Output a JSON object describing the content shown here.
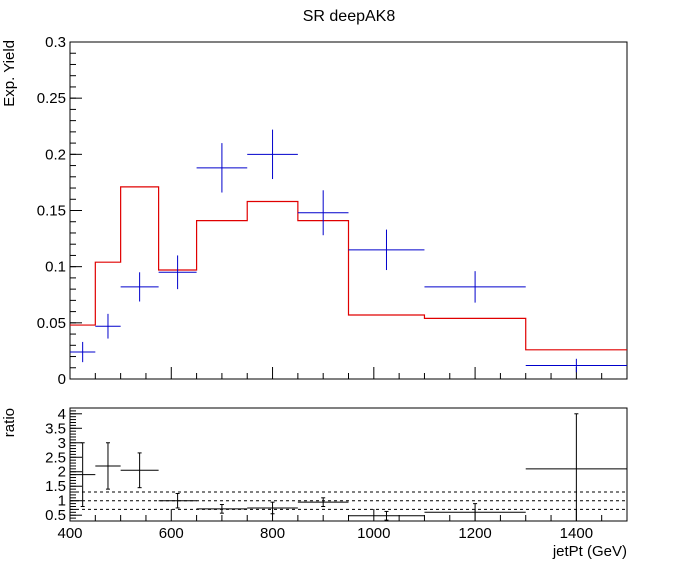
{
  "chart_data": [
    {
      "type": "line",
      "title": "SR deepAK8",
      "xlabel": "",
      "ylabel": "Exp. Yield",
      "xlim": [
        400,
        1500
      ],
      "ylim": [
        0,
        0.3
      ],
      "yticks": [
        "0",
        "0.05",
        "0.1",
        "0.15",
        "0.2",
        "0.25",
        "0.3"
      ],
      "ytick_values": [
        0,
        0.05,
        0.1,
        0.15,
        0.2,
        0.25,
        0.3
      ],
      "grid": false,
      "series": [
        {
          "style": "step",
          "color": "#e00000",
          "bin_edges": [
            400,
            450,
            500,
            575,
            650,
            750,
            850,
            950,
            1100,
            1300,
            1500
          ],
          "values": [
            0.048,
            0.104,
            0.171,
            0.097,
            0.141,
            0.158,
            0.141,
            0.057,
            0.054,
            0.026
          ]
        },
        {
          "style": "errorbar",
          "color": "#0000cc",
          "bin_edges": [
            400,
            450,
            500,
            575,
            650,
            750,
            850,
            950,
            1100,
            1300,
            1500
          ],
          "values": [
            0.024,
            0.047,
            0.082,
            0.095,
            0.188,
            0.2,
            0.148,
            0.115,
            0.082,
            0.012
          ],
          "yerr": [
            0.009,
            0.011,
            0.013,
            0.015,
            0.022,
            0.022,
            0.02,
            0.018,
            0.014,
            0.006
          ]
        }
      ]
    },
    {
      "type": "scatter",
      "title": "",
      "xlabel": "jetPt (GeV)",
      "ylabel": "ratio",
      "xlim": [
        400,
        1500
      ],
      "ylim": [
        0.3,
        4.2
      ],
      "xticks": [
        "400",
        "600",
        "800",
        "1000",
        "1200",
        "1400"
      ],
      "xtick_values": [
        400,
        600,
        800,
        1000,
        1200,
        1400
      ],
      "yticks": [
        "0.5",
        "1",
        "1.5",
        "2",
        "2.5",
        "3",
        "3.5",
        "4"
      ],
      "ytick_values": [
        0.5,
        1,
        1.5,
        2,
        2.5,
        3,
        3.5,
        4
      ],
      "reference_lines": [
        0.7,
        1.0,
        1.3
      ],
      "grid": false,
      "series": [
        {
          "style": "errorbar",
          "color": "#000000",
          "bin_edges": [
            400,
            450,
            500,
            575,
            650,
            750,
            850,
            950,
            1100,
            1300,
            1500
          ],
          "values": [
            1.9,
            2.2,
            2.05,
            1.0,
            0.72,
            0.75,
            0.95,
            0.48,
            0.6,
            2.1
          ],
          "yerr": [
            1.1,
            0.8,
            0.6,
            0.25,
            0.15,
            0.2,
            0.15,
            0.15,
            0.3,
            1.9
          ]
        }
      ]
    }
  ]
}
